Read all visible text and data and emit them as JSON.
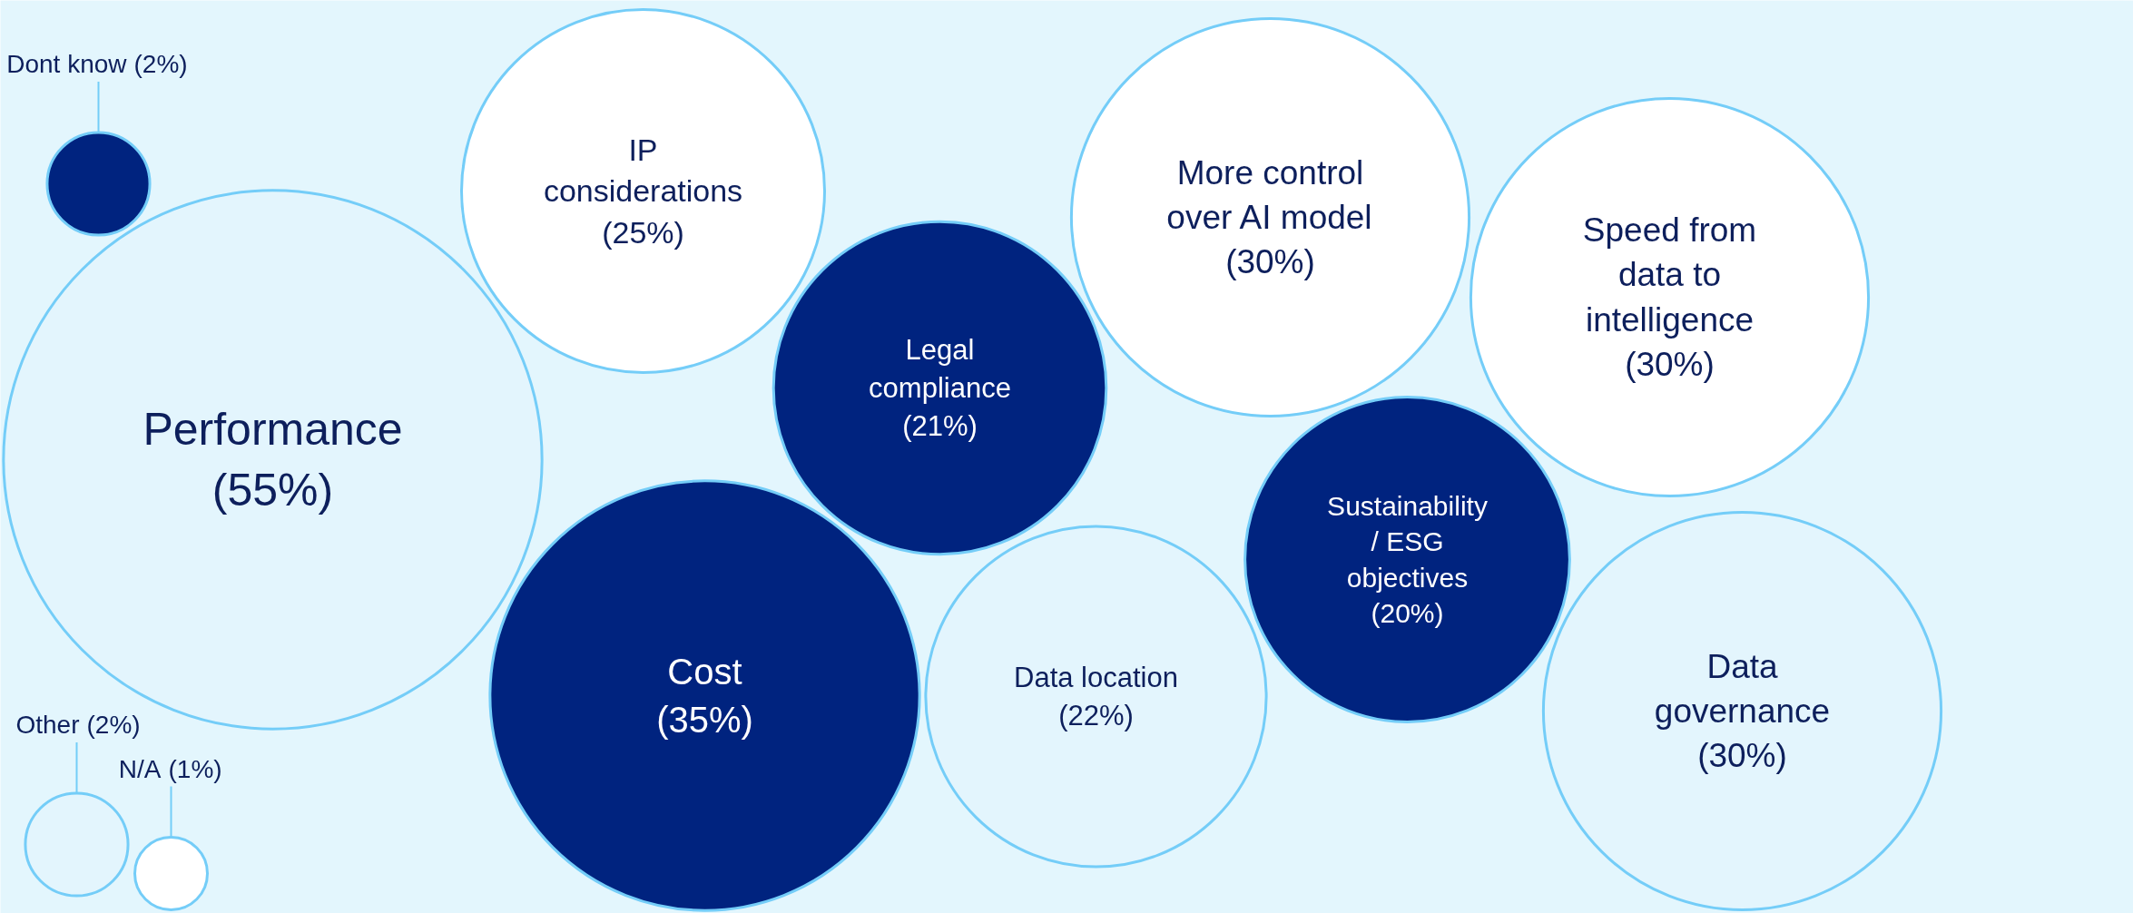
{
  "chart_data": {
    "type": "other",
    "categories": [
      "Performance",
      "IP considerations",
      "Cost",
      "Legal compliance",
      "Data location",
      "More control over AI model",
      "Dont know",
      "Other",
      "Sustainability/ ESG objectives",
      "Speed from data to intelligence",
      "N/A",
      "Data governance"
    ],
    "values": [
      55,
      25,
      35,
      21,
      22,
      30,
      2,
      2,
      20,
      30,
      1,
      30
    ],
    "value_labels": [
      "(55%)",
      "(25%)",
      "(35%)",
      "(21%)",
      "(22%)",
      "(30%)",
      "(2%)",
      "(2%)",
      "(20%)",
      "(30%)",
      "(1%)",
      "(30%)"
    ],
    "colors": [
      "#e3f5fd",
      "#ffffff",
      "#00237f",
      "#00237f",
      "#e3f5fd",
      "#ffffff",
      "#00237f",
      "#e3f5fd",
      "#00237f",
      "#ffffff",
      "#ffffff",
      "#e3f5fd"
    ]
  }
}
